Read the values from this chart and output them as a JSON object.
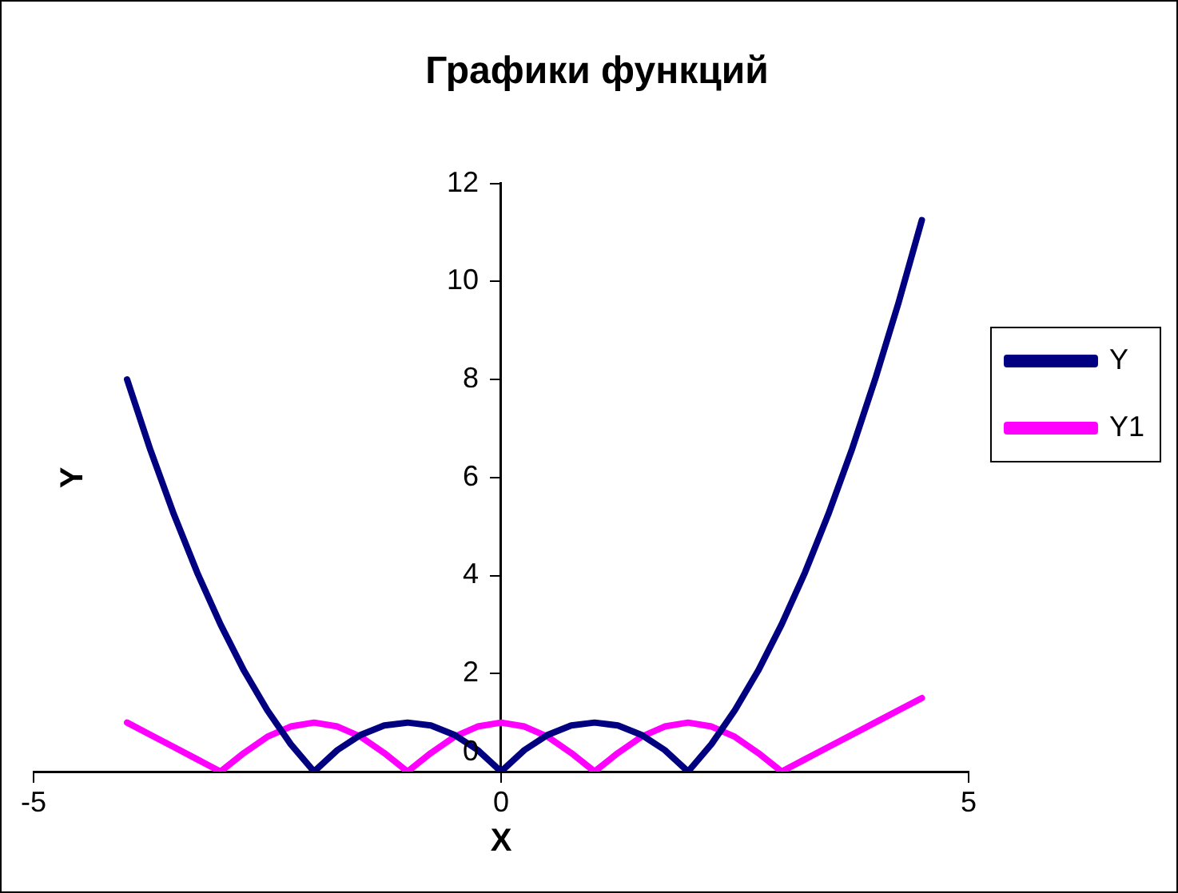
{
  "chart_data": {
    "type": "line",
    "title": "Графики функций",
    "xlabel": "X",
    "ylabel": "Y",
    "x": [
      -4,
      -3.75,
      -3.5,
      -3.25,
      -3,
      -2.75,
      -2.5,
      -2.25,
      -2,
      -1.75,
      -1.5,
      -1.25,
      -1,
      -0.75,
      -0.5,
      -0.25,
      0,
      0.25,
      0.5,
      0.75,
      1,
      1.25,
      1.5,
      1.75,
      2,
      2.25,
      2.5,
      2.75,
      3,
      3.25,
      3.5,
      3.75,
      4,
      4.25,
      4.5
    ],
    "series": [
      {
        "name": "Y",
        "color": "#000080",
        "values": [
          8,
          6.56,
          5.25,
          4.06,
          3,
          2.06,
          1.25,
          0.56,
          0,
          0.44,
          0.75,
          0.94,
          1,
          0.94,
          0.75,
          0.44,
          0,
          0.44,
          0.75,
          0.94,
          1,
          0.94,
          0.75,
          0.44,
          0,
          0.56,
          1.25,
          2.06,
          3,
          4.06,
          5.25,
          6.56,
          8,
          9.56,
          11.25
        ]
      },
      {
        "name": "Y1",
        "color": "#ff00ff",
        "values": [
          1,
          0.75,
          0.5,
          0.25,
          0,
          0.38,
          0.71,
          0.92,
          1,
          0.92,
          0.71,
          0.38,
          0,
          0.38,
          0.71,
          0.92,
          1,
          0.92,
          0.71,
          0.38,
          0,
          0.38,
          0.71,
          0.92,
          1,
          0.92,
          0.71,
          0.38,
          0,
          0.25,
          0.5,
          0.75,
          1,
          1.25,
          1.5
        ]
      }
    ],
    "xlim": [
      -5,
      5
    ],
    "xticks": [
      -5,
      0,
      5
    ],
    "ylim": [
      0,
      12
    ],
    "yticks": [
      0,
      2,
      4,
      6,
      8,
      10,
      12
    ],
    "grid": false,
    "legend": "right",
    "marker": "none",
    "line_style": "solid"
  }
}
